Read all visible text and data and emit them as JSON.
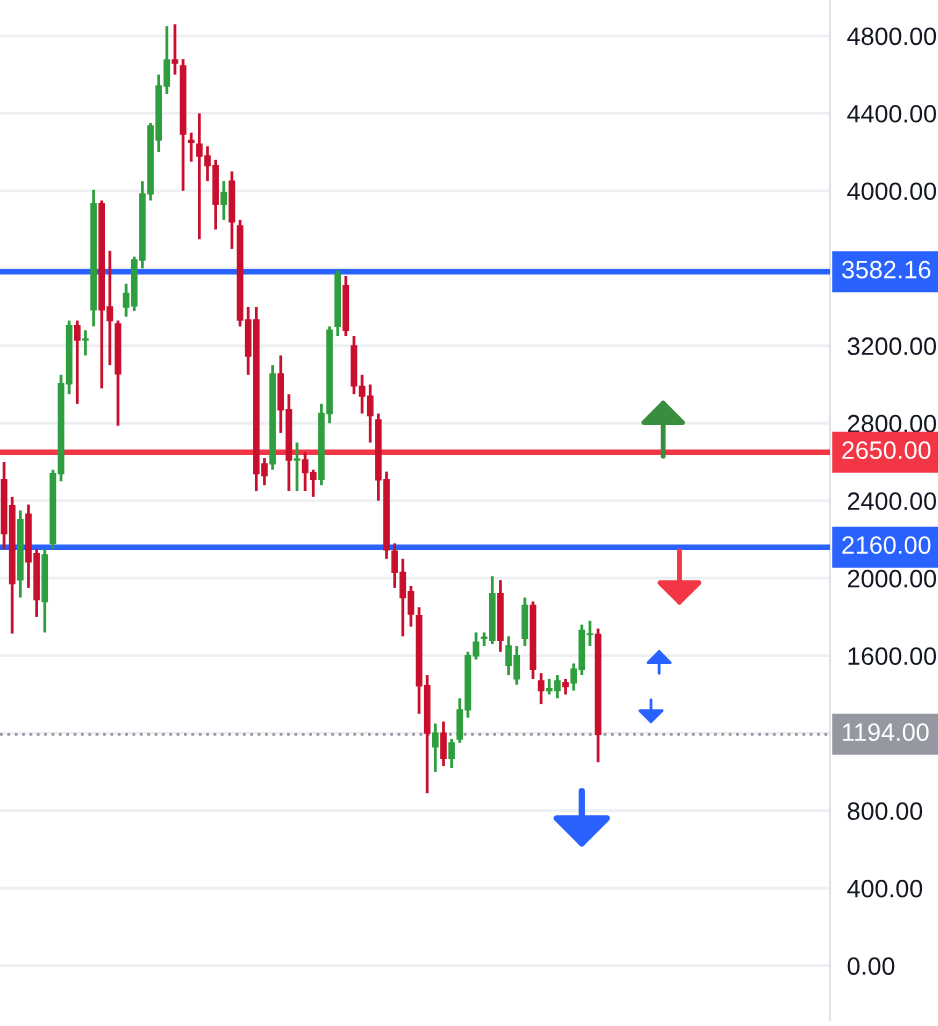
{
  "chart_data": {
    "type": "candlestick",
    "categories": [
      null,
      null,
      null,
      null,
      null,
      null,
      null,
      null,
      null,
      null,
      null,
      null,
      null,
      null,
      null,
      null,
      null,
      null,
      null,
      null,
      null,
      null,
      null,
      null,
      null,
      null,
      null,
      null,
      null,
      null,
      null,
      null,
      null,
      null,
      null,
      null,
      null,
      null,
      null,
      null,
      null,
      null,
      null,
      null,
      null,
      null,
      null,
      null,
      null,
      null,
      null,
      null,
      null,
      null,
      null,
      null,
      null,
      null,
      null,
      null,
      null,
      null,
      null,
      null,
      null,
      null,
      null,
      null,
      null,
      null,
      null,
      null,
      null,
      null,
      null,
      null,
      null,
      null,
      null,
      null,
      null,
      null,
      null,
      null,
      null,
      null,
      null,
      null,
      null,
      null,
      null,
      null,
      null,
      null,
      null,
      null,
      null,
      null,
      null,
      null,
      null,
      null
    ],
    "ohlc": [
      [
        2508,
        2600,
        2150,
        2230
      ],
      [
        2374,
        2420,
        1714,
        1972
      ],
      [
        1992,
        2350,
        1900,
        2302
      ],
      [
        2330,
        2380,
        1950,
        2085
      ],
      [
        2127,
        2150,
        1800,
        1890
      ],
      [
        1880,
        2150,
        1720,
        2120
      ],
      [
        2180,
        2560,
        2150,
        2540
      ],
      [
        2540,
        3050,
        2500,
        3004
      ],
      [
        3004,
        3330,
        2950,
        3303
      ],
      [
        3303,
        3330,
        2900,
        3230
      ],
      [
        3230,
        3280,
        3150,
        3235
      ],
      [
        3386,
        4005,
        3300,
        3933
      ],
      [
        3933,
        3950,
        2980,
        3386
      ],
      [
        3400,
        3690,
        3100,
        3330
      ],
      [
        3313,
        3330,
        2787,
        3055
      ],
      [
        3400,
        3520,
        3350,
        3470
      ],
      [
        3406,
        3660,
        3380,
        3643
      ],
      [
        3643,
        4050,
        3600,
        3984
      ],
      [
        3984,
        4350,
        3950,
        4335
      ],
      [
        4262,
        4600,
        4200,
        4541
      ],
      [
        4541,
        4850,
        4500,
        4675
      ],
      [
        4675,
        4860,
        4600,
        4660
      ],
      [
        4644,
        4680,
        4000,
        4293
      ],
      [
        4260,
        4300,
        4150,
        4250
      ],
      [
        4240,
        4400,
        3750,
        4180
      ],
      [
        4180,
        4230,
        4050,
        4130
      ],
      [
        4130,
        4160,
        3800,
        3930
      ],
      [
        3930,
        4050,
        3850,
        3990
      ],
      [
        4050,
        4100,
        3700,
        3840
      ],
      [
        3818,
        3850,
        3300,
        3333
      ],
      [
        3333,
        3400,
        3050,
        3147
      ],
      [
        3333,
        3400,
        2450,
        2540
      ],
      [
        2590,
        2620,
        2480,
        2530
      ],
      [
        2590,
        3100,
        2560,
        3055
      ],
      [
        3055,
        3150,
        2750,
        2870
      ],
      [
        2870,
        2950,
        2450,
        2610
      ],
      [
        2610,
        2700,
        2450,
        2615
      ],
      [
        2610,
        2650,
        2450,
        2545
      ],
      [
        2545,
        2560,
        2420,
        2510
      ],
      [
        2510,
        2900,
        2480,
        2850
      ],
      [
        2850,
        3300,
        2800,
        3280
      ],
      [
        3300,
        3590,
        3250,
        3570
      ],
      [
        3510,
        3560,
        3250,
        3280
      ],
      [
        3199,
        3250,
        2950,
        2993
      ],
      [
        2990,
        3050,
        2850,
        2940
      ],
      [
        2940,
        3000,
        2700,
        2840
      ],
      [
        2817,
        2850,
        2400,
        2508
      ],
      [
        2508,
        2550,
        2100,
        2147
      ],
      [
        2140,
        2180,
        1950,
        2030
      ],
      [
        2030,
        2100,
        1700,
        1900
      ],
      [
        1930,
        1960,
        1750,
        1815
      ],
      [
        1806,
        1850,
        1300,
        1445
      ],
      [
        1445,
        1500,
        890,
        1200
      ],
      [
        1130,
        1250,
        1000,
        1200
      ],
      [
        1200,
        1260,
        1030,
        1070
      ],
      [
        1070,
        1170,
        1020,
        1150
      ],
      [
        1170,
        1380,
        1150,
        1320
      ],
      [
        1320,
        1620,
        1280,
        1600
      ],
      [
        1600,
        1720,
        1580,
        1670
      ],
      [
        1690,
        1720,
        1650,
        1695
      ],
      [
        1680,
        2010,
        1660,
        1920
      ],
      [
        1920,
        1990,
        1620,
        1680
      ],
      [
        1550,
        1700,
        1500,
        1650
      ],
      [
        1480,
        1650,
        1450,
        1600
      ],
      [
        1690,
        1900,
        1650,
        1860
      ],
      [
        1860,
        1880,
        1480,
        1530
      ],
      [
        1470,
        1510,
        1350,
        1420
      ],
      [
        1420,
        1480,
        1400,
        1430
      ],
      [
        1420,
        1500,
        1380,
        1470
      ],
      [
        1460,
        1480,
        1400,
        1440
      ],
      [
        1460,
        1560,
        1420,
        1530
      ],
      [
        1530,
        1760,
        1500,
        1730
      ],
      [
        1710,
        1780,
        1650,
        1712
      ],
      [
        1710,
        1740,
        1050,
        1194
      ],
      null,
      null,
      null,
      null,
      null,
      null,
      null,
      null,
      null,
      null,
      null,
      null,
      null,
      null,
      null,
      null,
      null,
      null,
      null,
      null,
      null,
      null,
      null,
      null,
      null,
      null,
      null,
      null
    ],
    "ylim": [
      -280,
      4985
    ],
    "yticks": [
      {
        "value": 0,
        "label": "0.00"
      },
      {
        "value": 400,
        "label": "400.00"
      },
      {
        "value": 800,
        "label": "800.00"
      },
      {
        "value": 1200,
        "label": null
      },
      {
        "value": 1600,
        "label": "1600.00"
      },
      {
        "value": 2000,
        "label": "2000.00"
      },
      {
        "value": 2400,
        "label": "2400.00"
      },
      {
        "value": 2800,
        "label": "2800.00"
      },
      {
        "value": 3200,
        "label": "3200.00"
      },
      {
        "value": 3600,
        "label": null
      },
      {
        "value": 4000,
        "label": "4000.00"
      },
      {
        "value": 4400,
        "label": "4400.00"
      },
      {
        "value": 4800,
        "label": "4800.00"
      }
    ],
    "ref_lines": [
      {
        "axis": "y",
        "value": 3582.16,
        "label": "3582.16",
        "color": "#2962ff",
        "line_style": "solid"
      },
      {
        "axis": "y",
        "value": 2650,
        "label": "2650.00",
        "color": "#f23645",
        "line_style": "solid"
      },
      {
        "axis": "y",
        "value": 2160,
        "label": "2160.00",
        "color": "#2962ff",
        "line_style": "solid"
      },
      {
        "axis": "y",
        "value": 1194,
        "label": "1194.00",
        "color": "#9598a1",
        "line_style": "dotted"
      }
    ],
    "grid": "y",
    "tick_labels": "y"
  }
}
